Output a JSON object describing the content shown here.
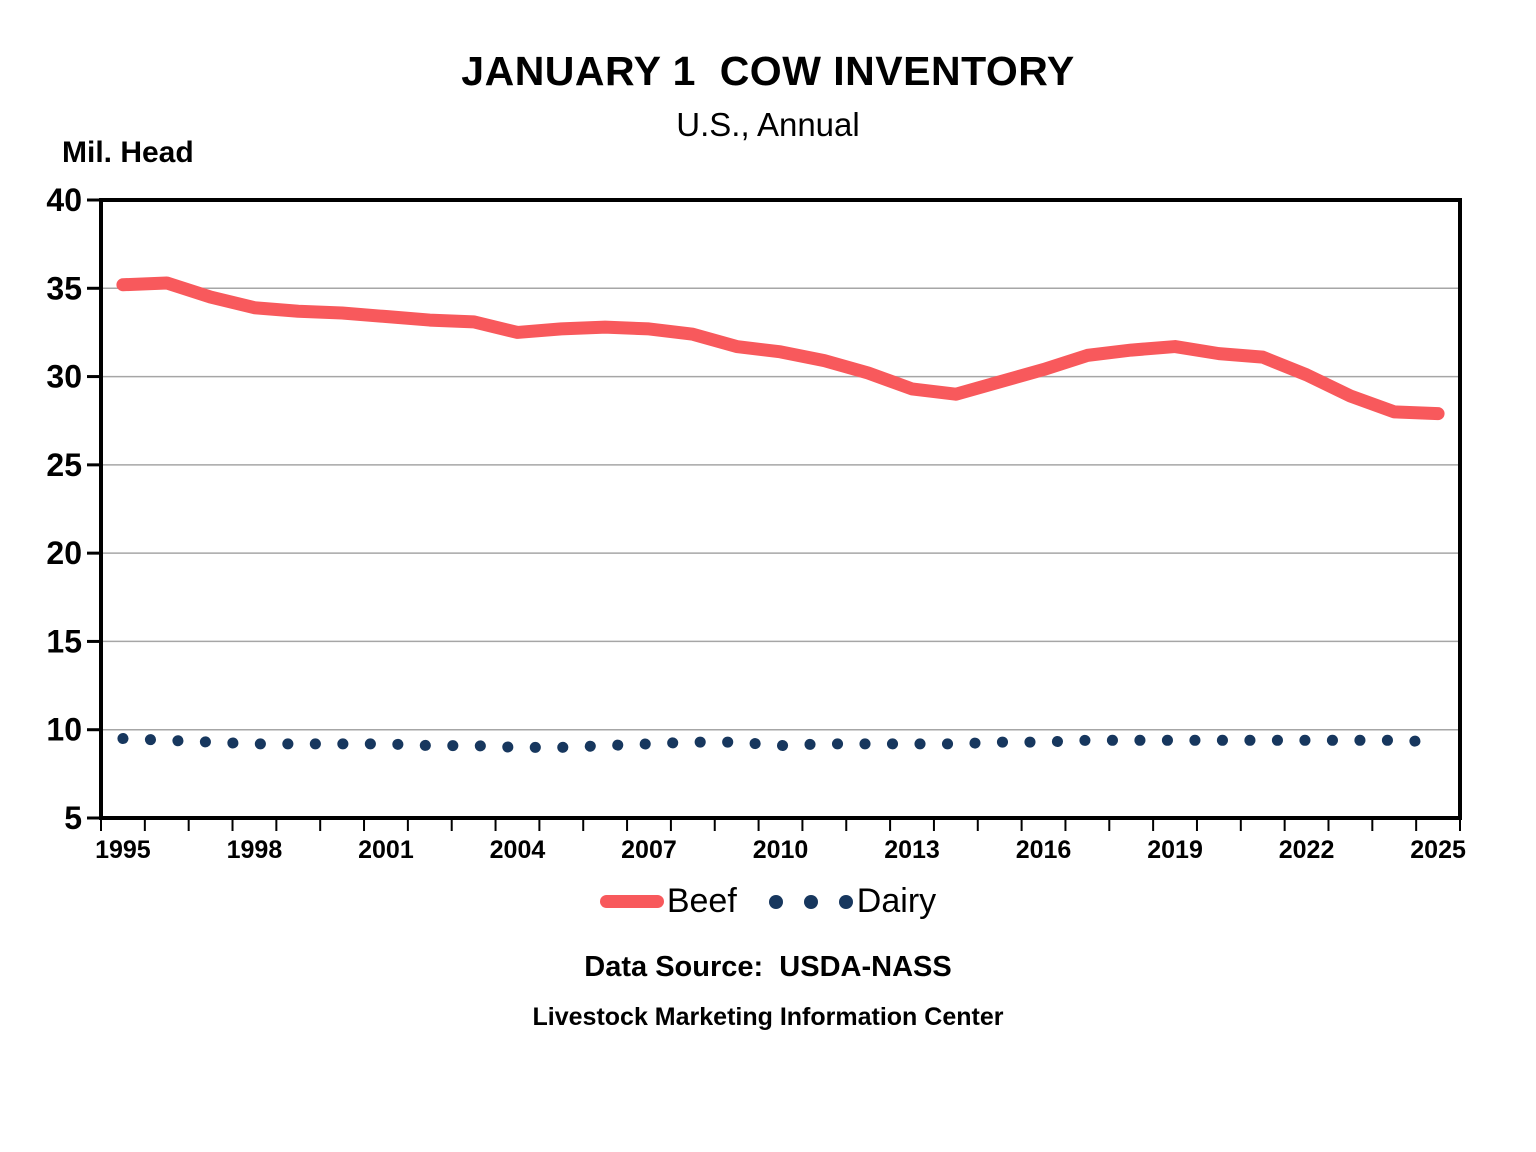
{
  "title": "JANUARY 1  COW INVENTORY",
  "subtitle": "U.S., Annual",
  "y_axis_unit": "Mil. Head",
  "footer": {
    "source": "Data Source:  USDA-NASS",
    "organization": "Livestock Marketing Information Center"
  },
  "legend": {
    "beef_label": "Beef",
    "dairy_label": "Dairy"
  },
  "colors": {
    "beef": "#F8595C",
    "dairy": "#17375E",
    "gridline": "#A6A6A6",
    "axis": "#000000",
    "background": "#FFFFFF"
  },
  "chart_data": {
    "type": "line",
    "title": "JANUARY 1  COW INVENTORY",
    "subtitle": "U.S., Annual",
    "xlabel": "",
    "ylabel": "Mil. Head",
    "ylim": [
      5,
      40
    ],
    "y_ticks": [
      5,
      10,
      15,
      20,
      25,
      30,
      35,
      40
    ],
    "x_tick_labels": [
      1995,
      1998,
      2001,
      2004,
      2007,
      2010,
      2013,
      2016,
      2019,
      2022,
      2025
    ],
    "grid": "horizontal",
    "legend_position": "bottom",
    "x": [
      1995,
      1996,
      1997,
      1998,
      1999,
      2000,
      2001,
      2002,
      2003,
      2004,
      2005,
      2006,
      2007,
      2008,
      2009,
      2010,
      2011,
      2012,
      2013,
      2014,
      2015,
      2016,
      2017,
      2018,
      2019,
      2020,
      2021,
      2022,
      2023,
      2024,
      2025
    ],
    "series": [
      {
        "name": "Beef",
        "color": "#F8595C",
        "style": "solid",
        "values": [
          35.2,
          35.3,
          34.5,
          33.9,
          33.7,
          33.6,
          33.4,
          33.2,
          33.1,
          32.5,
          32.7,
          32.8,
          32.7,
          32.4,
          31.7,
          31.4,
          30.9,
          30.2,
          29.3,
          29.0,
          29.7,
          30.4,
          31.2,
          31.5,
          31.7,
          31.3,
          31.1,
          30.1,
          28.9,
          28.0,
          27.9
        ]
      },
      {
        "name": "Dairy",
        "color": "#17375E",
        "style": "dotted",
        "values": [
          9.5,
          9.4,
          9.3,
          9.2,
          9.2,
          9.2,
          9.2,
          9.1,
          9.1,
          9.0,
          9.0,
          9.1,
          9.2,
          9.3,
          9.3,
          9.1,
          9.2,
          9.2,
          9.2,
          9.2,
          9.3,
          9.3,
          9.4,
          9.4,
          9.4,
          9.4,
          9.4,
          9.4,
          9.4,
          9.4,
          9.3
        ]
      }
    ]
  }
}
